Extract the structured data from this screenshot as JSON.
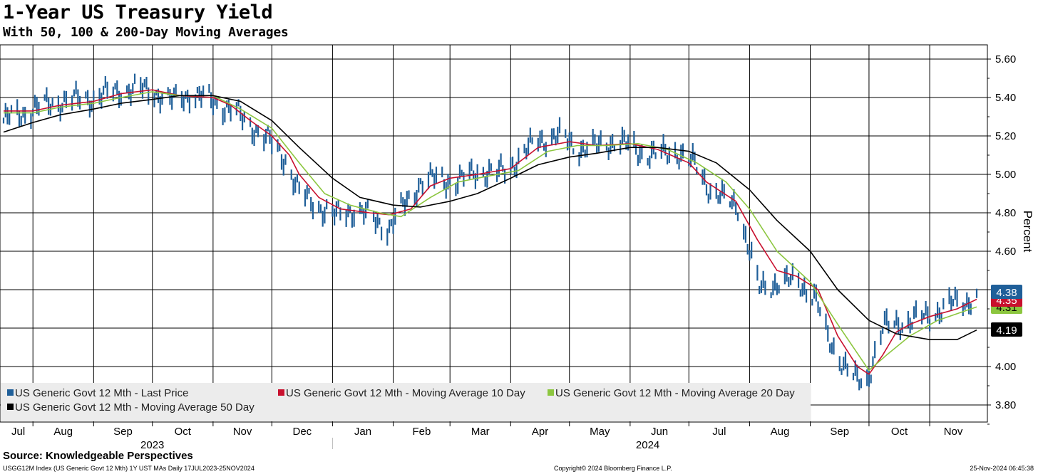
{
  "title": "1-Year US Treasury Yield",
  "subtitle": "With 50, 100 & 200-Day Moving Averages",
  "source": "Source: Knowledgeable Perspectives",
  "footer": {
    "index_info": "USGG12M Index (US Generic Govt 12 Mth) 1Y UST MAs  Daily 17JUL2023-25NOV2024",
    "copyright": "Copyright© 2024 Bloomberg Finance L.P.",
    "timestamp": "25-Nov-2024 06:45:38"
  },
  "chart_data": {
    "type": "line",
    "ylabel": "Percent",
    "ylim": [
      3.7,
      5.65
    ],
    "yticks": [
      "5.60",
      "5.40",
      "5.20",
      "5.00",
      "4.80",
      "4.60",
      "4.40",
      "4.20",
      "4.00",
      "3.80"
    ],
    "month_labels": [
      "Jul",
      "Aug",
      "Sep",
      "Oct",
      "Nov",
      "Dec",
      "Jan",
      "Feb",
      "Mar",
      "Apr",
      "May",
      "Jun",
      "Jul",
      "Aug",
      "Sep",
      "Oct",
      "Nov"
    ],
    "year_labels": [
      "2023",
      "2024"
    ],
    "x_start": "2023-07-17",
    "x_end": "2024-11-25",
    "grid": true,
    "legend_position": "bottom-left",
    "series": [
      {
        "name": "US Generic Govt 12 Mth - Last Price",
        "color": "#1f5f99",
        "style": "bars",
        "last_label": "4.38",
        "points": [
          [
            "2023-07-17",
            5.28
          ],
          [
            "2023-08-01",
            5.34
          ],
          [
            "2023-08-15",
            5.38
          ],
          [
            "2023-09-01",
            5.4
          ],
          [
            "2023-09-15",
            5.44
          ],
          [
            "2023-10-01",
            5.44
          ],
          [
            "2023-10-10",
            5.38
          ],
          [
            "2023-10-20",
            5.42
          ],
          [
            "2023-11-01",
            5.38
          ],
          [
            "2023-11-10",
            5.34
          ],
          [
            "2023-11-20",
            5.26
          ],
          [
            "2023-12-01",
            5.16
          ],
          [
            "2023-12-08",
            5.08
          ],
          [
            "2023-12-15",
            4.9
          ],
          [
            "2023-12-22",
            4.86
          ],
          [
            "2024-01-01",
            4.78
          ],
          [
            "2024-01-10",
            4.82
          ],
          [
            "2024-01-20",
            4.78
          ],
          [
            "2024-01-30",
            4.72
          ],
          [
            "2024-02-08",
            4.86
          ],
          [
            "2024-02-15",
            4.96
          ],
          [
            "2024-02-25",
            4.98
          ],
          [
            "2024-03-05",
            4.96
          ],
          [
            "2024-03-15",
            5.02
          ],
          [
            "2024-03-25",
            5.0
          ],
          [
            "2024-04-05",
            5.08
          ],
          [
            "2024-04-15",
            5.18
          ],
          [
            "2024-04-25",
            5.2
          ],
          [
            "2024-05-05",
            5.14
          ],
          [
            "2024-05-15",
            5.14
          ],
          [
            "2024-05-25",
            5.18
          ],
          [
            "2024-06-05",
            5.12
          ],
          [
            "2024-06-15",
            5.1
          ],
          [
            "2024-06-25",
            5.12
          ],
          [
            "2024-07-05",
            5.04
          ],
          [
            "2024-07-12",
            4.92
          ],
          [
            "2024-07-20",
            4.86
          ],
          [
            "2024-07-26",
            4.84
          ],
          [
            "2024-08-02",
            4.56
          ],
          [
            "2024-08-06",
            4.4
          ],
          [
            "2024-08-15",
            4.44
          ],
          [
            "2024-08-25",
            4.44
          ],
          [
            "2024-09-03",
            4.38
          ],
          [
            "2024-09-10",
            4.14
          ],
          [
            "2024-09-18",
            4.02
          ],
          [
            "2024-09-25",
            3.92
          ],
          [
            "2024-09-30",
            3.92
          ],
          [
            "2024-10-03",
            4.04
          ],
          [
            "2024-10-08",
            4.2
          ],
          [
            "2024-10-15",
            4.22
          ],
          [
            "2024-10-22",
            4.24
          ],
          [
            "2024-10-31",
            4.26
          ],
          [
            "2024-11-10",
            4.32
          ],
          [
            "2024-11-20",
            4.34
          ],
          [
            "2024-11-25",
            4.38
          ]
        ]
      },
      {
        "name": "US Generic Govt 12 Mth - Moving Average 10 Day",
        "color": "#c8102e",
        "style": "line",
        "last_label": "4.35",
        "points": [
          [
            "2023-07-17",
            5.33
          ],
          [
            "2023-08-01",
            5.33
          ],
          [
            "2023-08-15",
            5.36
          ],
          [
            "2023-09-01",
            5.38
          ],
          [
            "2023-09-15",
            5.42
          ],
          [
            "2023-10-01",
            5.44
          ],
          [
            "2023-10-15",
            5.41
          ],
          [
            "2023-11-01",
            5.4
          ],
          [
            "2023-11-10",
            5.36
          ],
          [
            "2023-11-20",
            5.28
          ],
          [
            "2023-12-01",
            5.2
          ],
          [
            "2023-12-10",
            5.1
          ],
          [
            "2023-12-15",
            5.0
          ],
          [
            "2023-12-25",
            4.88
          ],
          [
            "2024-01-05",
            4.82
          ],
          [
            "2024-01-20",
            4.8
          ],
          [
            "2024-01-30",
            4.79
          ],
          [
            "2024-02-10",
            4.82
          ],
          [
            "2024-02-20",
            4.94
          ],
          [
            "2024-03-01",
            4.98
          ],
          [
            "2024-03-15",
            5.0
          ],
          [
            "2024-04-01",
            5.03
          ],
          [
            "2024-04-15",
            5.14
          ],
          [
            "2024-05-01",
            5.17
          ],
          [
            "2024-05-15",
            5.15
          ],
          [
            "2024-06-01",
            5.16
          ],
          [
            "2024-06-15",
            5.13
          ],
          [
            "2024-07-01",
            5.06
          ],
          [
            "2024-07-10",
            4.96
          ],
          [
            "2024-07-25",
            4.86
          ],
          [
            "2024-08-05",
            4.66
          ],
          [
            "2024-08-15",
            4.5
          ],
          [
            "2024-08-25",
            4.47
          ],
          [
            "2024-09-05",
            4.4
          ],
          [
            "2024-09-15",
            4.16
          ],
          [
            "2024-09-25",
            4.0
          ],
          [
            "2024-10-01",
            3.96
          ],
          [
            "2024-10-08",
            4.06
          ],
          [
            "2024-10-15",
            4.18
          ],
          [
            "2024-10-22",
            4.22
          ],
          [
            "2024-11-01",
            4.26
          ],
          [
            "2024-11-15",
            4.3
          ],
          [
            "2024-11-25",
            4.35
          ]
        ]
      },
      {
        "name": "US Generic Govt 12 Mth - Moving Average 20 Day",
        "color": "#8cc63f",
        "style": "line",
        "last_label": "4.31",
        "points": [
          [
            "2023-07-17",
            5.32
          ],
          [
            "2023-08-01",
            5.32
          ],
          [
            "2023-08-15",
            5.35
          ],
          [
            "2023-09-01",
            5.37
          ],
          [
            "2023-09-15",
            5.4
          ],
          [
            "2023-10-01",
            5.43
          ],
          [
            "2023-10-15",
            5.41
          ],
          [
            "2023-11-01",
            5.41
          ],
          [
            "2023-11-15",
            5.34
          ],
          [
            "2023-12-01",
            5.24
          ],
          [
            "2023-12-15",
            5.06
          ],
          [
            "2023-12-28",
            4.9
          ],
          [
            "2024-01-10",
            4.84
          ],
          [
            "2024-01-25",
            4.8
          ],
          [
            "2024-02-05",
            4.78
          ],
          [
            "2024-02-20",
            4.88
          ],
          [
            "2024-03-05",
            4.96
          ],
          [
            "2024-03-20",
            4.99
          ],
          [
            "2024-04-05",
            5.02
          ],
          [
            "2024-04-20",
            5.12
          ],
          [
            "2024-05-05",
            5.15
          ],
          [
            "2024-05-20",
            5.15
          ],
          [
            "2024-06-05",
            5.16
          ],
          [
            "2024-06-20",
            5.13
          ],
          [
            "2024-07-05",
            5.06
          ],
          [
            "2024-07-20",
            4.96
          ],
          [
            "2024-08-01",
            4.82
          ],
          [
            "2024-08-15",
            4.6
          ],
          [
            "2024-09-01",
            4.44
          ],
          [
            "2024-09-15",
            4.22
          ],
          [
            "2024-10-01",
            3.98
          ],
          [
            "2024-10-10",
            4.06
          ],
          [
            "2024-10-22",
            4.16
          ],
          [
            "2024-11-05",
            4.24
          ],
          [
            "2024-11-25",
            4.31
          ]
        ]
      },
      {
        "name": "US Generic Govt 12 Mth - Moving Average 50 Day",
        "color": "#000000",
        "style": "line",
        "last_label": "4.19",
        "points": [
          [
            "2023-07-17",
            5.22
          ],
          [
            "2023-08-01",
            5.27
          ],
          [
            "2023-08-15",
            5.31
          ],
          [
            "2023-09-01",
            5.34
          ],
          [
            "2023-09-15",
            5.37
          ],
          [
            "2023-10-01",
            5.39
          ],
          [
            "2023-10-15",
            5.41
          ],
          [
            "2023-11-01",
            5.41
          ],
          [
            "2023-11-15",
            5.38
          ],
          [
            "2023-12-01",
            5.28
          ],
          [
            "2023-12-15",
            5.14
          ],
          [
            "2024-01-01",
            4.98
          ],
          [
            "2024-01-15",
            4.88
          ],
          [
            "2024-02-01",
            4.84
          ],
          [
            "2024-02-15",
            4.83
          ],
          [
            "2024-03-01",
            4.86
          ],
          [
            "2024-03-15",
            4.9
          ],
          [
            "2024-04-01",
            4.98
          ],
          [
            "2024-04-15",
            5.05
          ],
          [
            "2024-05-01",
            5.09
          ],
          [
            "2024-05-15",
            5.11
          ],
          [
            "2024-06-01",
            5.14
          ],
          [
            "2024-06-15",
            5.14
          ],
          [
            "2024-07-01",
            5.12
          ],
          [
            "2024-07-15",
            5.06
          ],
          [
            "2024-08-01",
            4.92
          ],
          [
            "2024-08-15",
            4.76
          ],
          [
            "2024-09-01",
            4.6
          ],
          [
            "2024-09-15",
            4.4
          ],
          [
            "2024-10-01",
            4.24
          ],
          [
            "2024-10-15",
            4.17
          ],
          [
            "2024-11-01",
            4.14
          ],
          [
            "2024-11-15",
            4.14
          ],
          [
            "2024-11-25",
            4.19
          ]
        ]
      }
    ]
  }
}
